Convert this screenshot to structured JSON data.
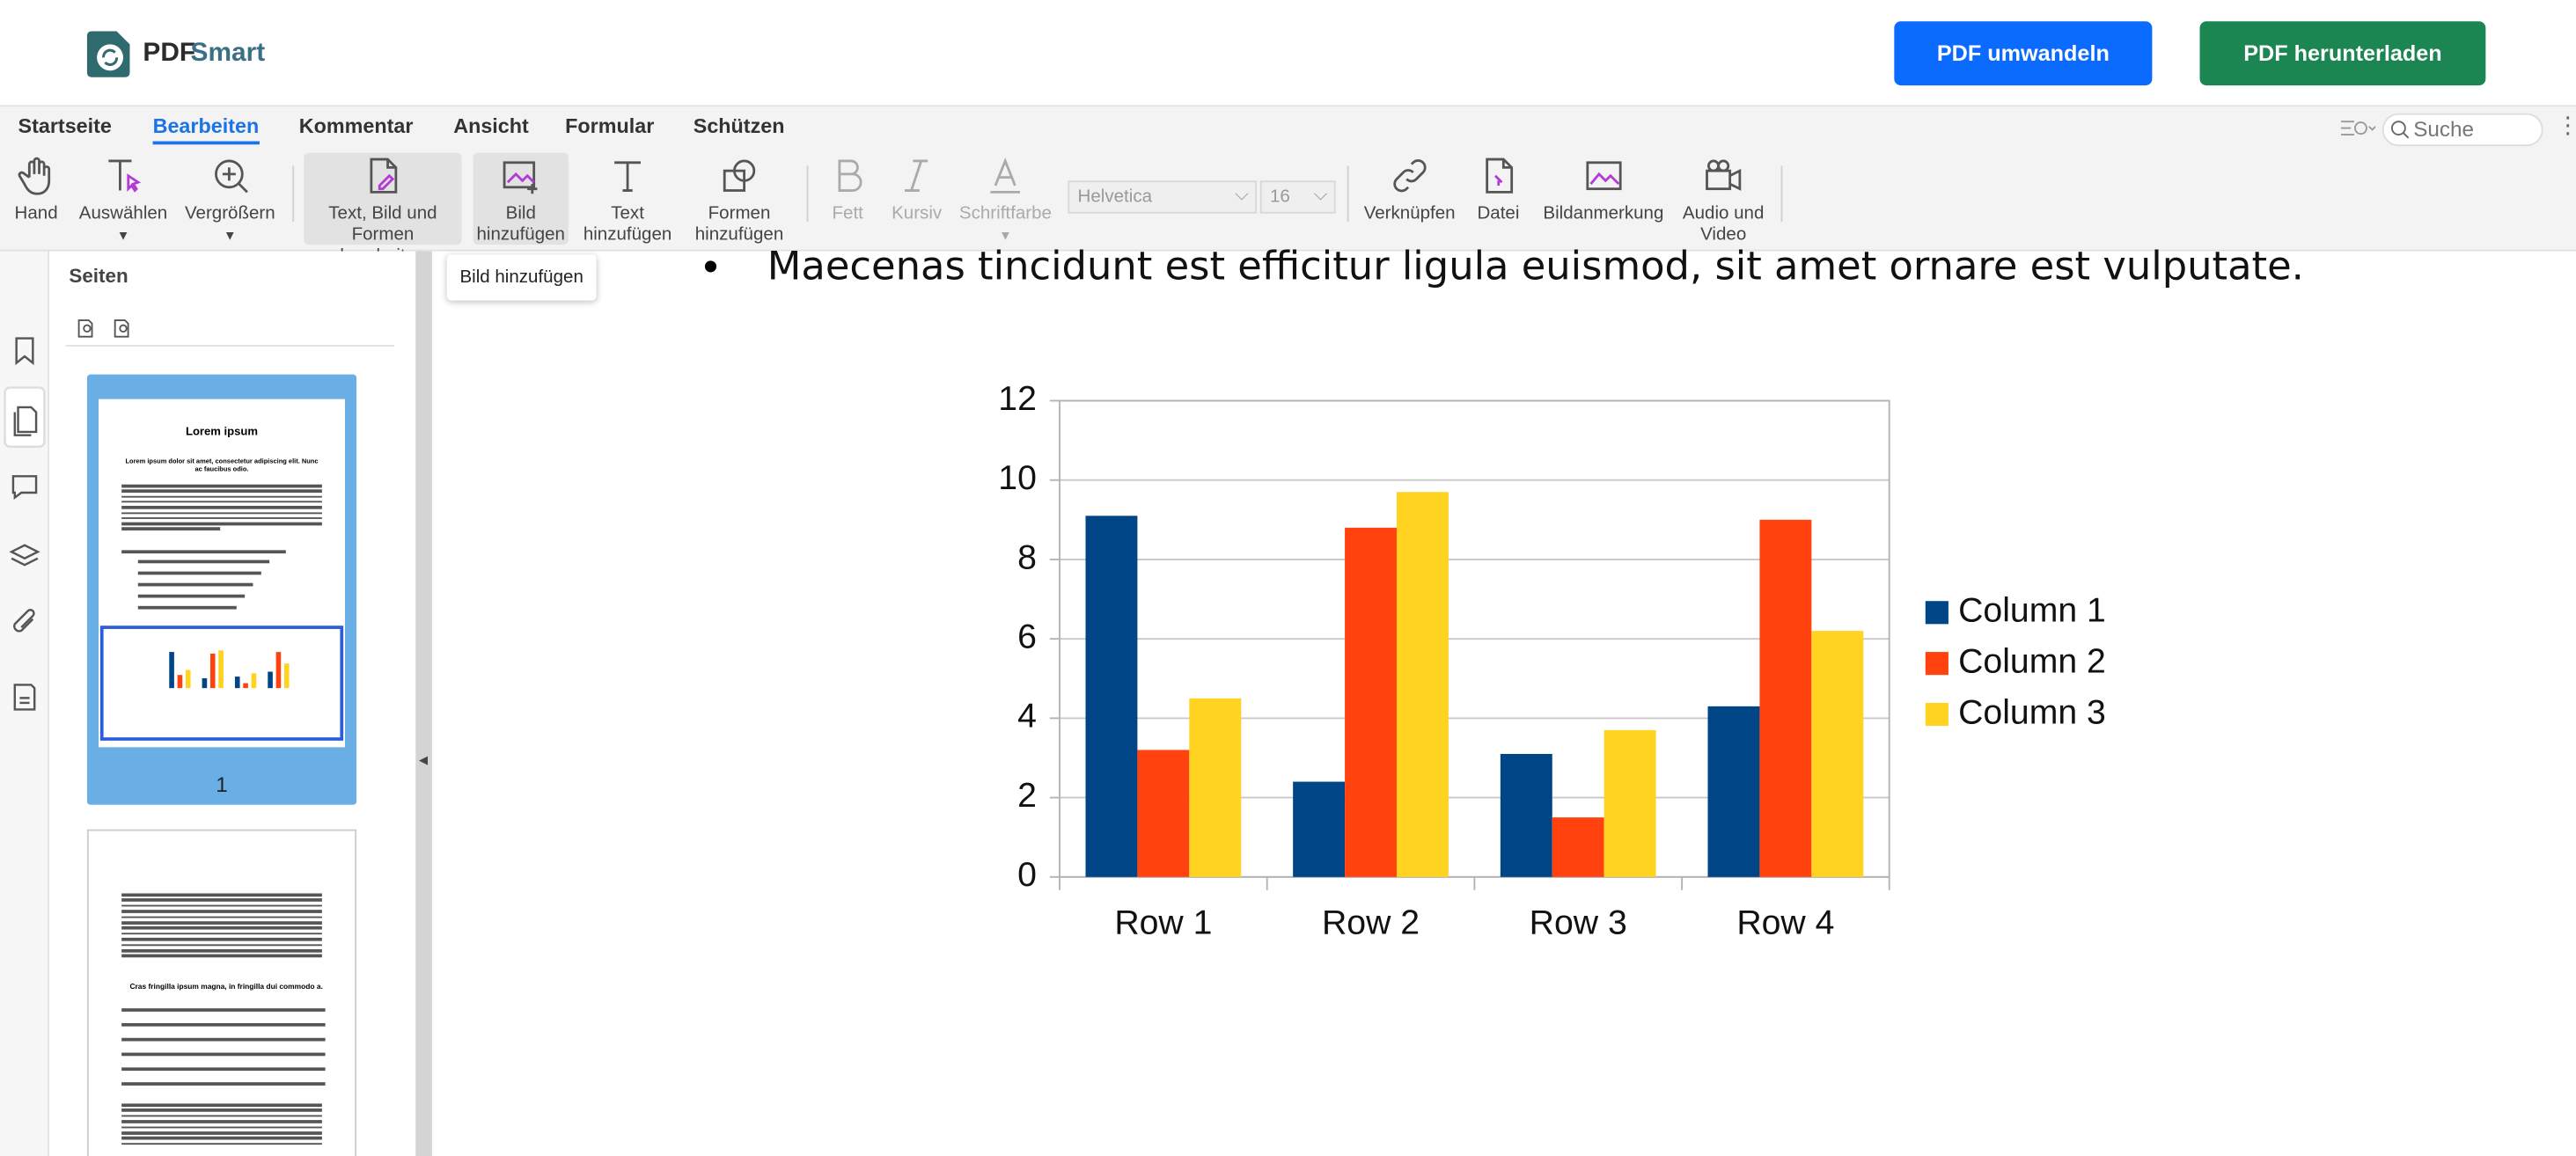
{
  "header": {
    "logo_part1": "PDF",
    "logo_part2": "Smart",
    "buttons": [
      "PDF umwandeln",
      "PDF herunterladen"
    ]
  },
  "menu": {
    "tabs": [
      "Startseite",
      "Bearbeiten",
      "Kommentar",
      "Ansicht",
      "Formular",
      "Schützen"
    ],
    "search": "Suche"
  },
  "toolbar": {
    "tools": [
      "Hand",
      "Auswählen",
      "Vergrößern",
      "Text, Bild und Formen bearbeiten",
      "Bild hinzufügen",
      "Text hinzufügen",
      "Formen hinzufügen",
      "Fett",
      "Kursiv",
      "Schriftfarbe",
      "Verknüpfen",
      "Datei",
      "Bildanmerkung",
      "Audio und Video"
    ],
    "font": "Helvetica",
    "font_size": "16"
  },
  "tooltip": "Bild hinzufügen",
  "sidebar": {
    "title": "Seiten",
    "page1_title": "Lorem ipsum",
    "page1_subtitle": "Lorem ipsum dolor sit amet, consectetur adipiscing elit. Nunc ac faucibus odio.",
    "page_number": "1",
    "page2_heading": "Cras fringilla ipsum magna, in fringilla dui commodo a."
  },
  "document": {
    "bullet_text": "Maecenas tincidunt est efficitur ligula euismod, sit amet ornare est vulputate."
  },
  "chart_data": {
    "type": "bar",
    "categories": [
      "Row 1",
      "Row 2",
      "Row 3",
      "Row 4"
    ],
    "series": [
      {
        "name": "Column 1",
        "color": "#004586",
        "values": [
          9.1,
          2.4,
          3.1,
          4.3
        ]
      },
      {
        "name": "Column 2",
        "color": "#ff420e",
        "values": [
          3.2,
          8.8,
          1.5,
          9.0
        ]
      },
      {
        "name": "Column 3",
        "color": "#ffd320",
        "values": [
          4.5,
          9.7,
          3.7,
          6.2
        ]
      }
    ],
    "ylim": [
      0,
      12
    ],
    "yticks": [
      0,
      2,
      4,
      6,
      8,
      10,
      12
    ],
    "grid": true,
    "legend": "right"
  }
}
